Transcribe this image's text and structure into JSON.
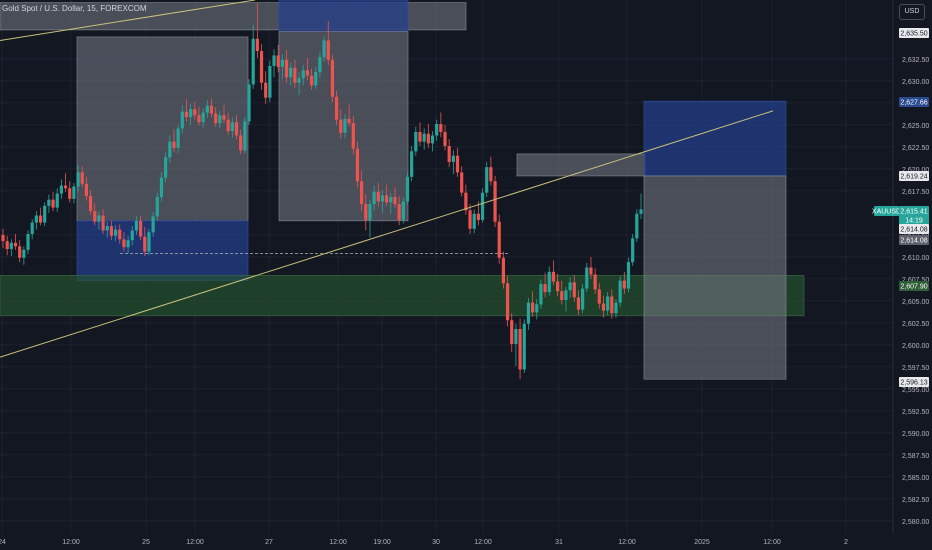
{
  "header": {
    "title": "Gold Spot / U.S. Dollar, 15, FOREXCOM",
    "currency": "USD"
  },
  "colors": {
    "background": "#131722",
    "up": "#26a69a",
    "down": "#ef5350",
    "grid": "#1e222d",
    "axis_text": "#b2b5be",
    "trendline": "#c9c07a",
    "blue_zone": "#1e3a7a",
    "green_zone": "#1f4028",
    "grey_zone": "#6b6e78"
  },
  "chart_data": {
    "type": "candlestick",
    "symbol": "XAUUSD",
    "ylim": [
      2578.5,
      2639.2
    ],
    "y_ticks": [
      "2,632.50",
      "2,630.00",
      "2,627.50",
      "2,625.00",
      "2,622.50",
      "2,620.00",
      "2,617.50",
      "2,612.50",
      "2,610.00",
      "2,607.50",
      "2,605.00",
      "2,602.50",
      "2,600.00",
      "2,597.50",
      "2,595.00",
      "2,592.50",
      "2,590.00",
      "2,587.50",
      "2,585.00",
      "2,582.50",
      "2,580.00"
    ],
    "x_ticks": [
      "24",
      "12:00",
      "25",
      "12:00",
      "27",
      "12:00",
      "19:00",
      "30",
      "12:00",
      "31",
      "12:00",
      "2025",
      "12:00",
      "2"
    ],
    "price_labels": [
      {
        "text": "2,635.50",
        "style": "plain"
      },
      {
        "text": "2,627.66",
        "style": "blue"
      },
      {
        "text": "2,619.24",
        "style": "plain"
      },
      {
        "text": "XAUUSD",
        "style": "symbol"
      },
      {
        "text": "2,615.41",
        "style": "teal"
      },
      {
        "text": "14:19",
        "style": "teal"
      },
      {
        "text": "2,614.08",
        "style": "plain"
      },
      {
        "text": "2,614.08",
        "style": "grey"
      },
      {
        "text": "2,607.90",
        "style": "green"
      },
      {
        "text": "2,596.13",
        "style": "plain"
      }
    ],
    "candles_ohlc": [
      [
        2612.5,
        2613.2,
        2611.0,
        2611.8
      ],
      [
        2611.8,
        2612.4,
        2610.2,
        2610.9
      ],
      [
        2610.9,
        2612.0,
        2610.1,
        2611.6
      ],
      [
        2611.6,
        2612.6,
        2610.8,
        2611.2
      ],
      [
        2611.2,
        2611.9,
        2609.4,
        2609.9
      ],
      [
        2609.9,
        2611.2,
        2609.1,
        2610.8
      ],
      [
        2610.8,
        2613.0,
        2610.3,
        2612.6
      ],
      [
        2612.6,
        2614.3,
        2612.0,
        2613.9
      ],
      [
        2613.9,
        2615.2,
        2613.1,
        2614.7
      ],
      [
        2614.7,
        2615.6,
        2613.6,
        2613.9
      ],
      [
        2613.9,
        2616.2,
        2613.5,
        2615.8
      ],
      [
        2615.8,
        2617.1,
        2615.0,
        2616.5
      ],
      [
        2616.5,
        2617.4,
        2615.2,
        2615.6
      ],
      [
        2615.6,
        2617.8,
        2615.1,
        2617.2
      ],
      [
        2617.2,
        2618.8,
        2616.6,
        2618.1
      ],
      [
        2618.1,
        2619.5,
        2617.4,
        2617.8
      ],
      [
        2617.8,
        2618.6,
        2616.2,
        2616.6
      ],
      [
        2616.6,
        2618.4,
        2616.1,
        2618.0
      ],
      [
        2618.0,
        2620.4,
        2617.5,
        2619.6
      ],
      [
        2619.6,
        2620.3,
        2617.9,
        2618.3
      ],
      [
        2618.3,
        2619.1,
        2616.4,
        2616.9
      ],
      [
        2616.9,
        2617.6,
        2614.8,
        2615.2
      ],
      [
        2615.2,
        2616.1,
        2613.6,
        2614.0
      ],
      [
        2614.0,
        2615.2,
        2613.1,
        2614.7
      ],
      [
        2614.7,
        2615.4,
        2612.6,
        2613.0
      ],
      [
        2613.0,
        2614.0,
        2612.2,
        2613.5
      ],
      [
        2613.5,
        2614.1,
        2611.9,
        2612.4
      ],
      [
        2612.4,
        2613.6,
        2611.8,
        2613.1
      ],
      [
        2613.1,
        2613.7,
        2611.5,
        2612.0
      ],
      [
        2612.0,
        2612.8,
        2610.6,
        2611.1
      ],
      [
        2611.1,
        2612.4,
        2610.4,
        2611.9
      ],
      [
        2611.9,
        2613.5,
        2611.3,
        2613.0
      ],
      [
        2613.0,
        2614.6,
        2612.5,
        2614.1
      ],
      [
        2614.1,
        2614.7,
        2611.9,
        2612.3
      ],
      [
        2612.3,
        2613.4,
        2610.1,
        2610.6
      ],
      [
        2610.6,
        2613.2,
        2610.2,
        2612.8
      ],
      [
        2612.8,
        2615.1,
        2612.3,
        2614.6
      ],
      [
        2614.6,
        2617.3,
        2614.1,
        2616.8
      ],
      [
        2616.8,
        2619.6,
        2616.3,
        2619.0
      ],
      [
        2619.0,
        2621.9,
        2618.5,
        2621.3
      ],
      [
        2621.3,
        2623.8,
        2620.7,
        2623.1
      ],
      [
        2623.1,
        2624.5,
        2621.9,
        2622.4
      ],
      [
        2622.4,
        2625.0,
        2621.8,
        2624.6
      ],
      [
        2624.6,
        2627.2,
        2624.0,
        2626.5
      ],
      [
        2626.5,
        2627.9,
        2625.4,
        2625.9
      ],
      [
        2625.9,
        2627.4,
        2625.0,
        2626.8
      ],
      [
        2626.8,
        2627.6,
        2625.6,
        2626.1
      ],
      [
        2626.1,
        2627.1,
        2624.9,
        2625.3
      ],
      [
        2625.3,
        2626.9,
        2624.7,
        2626.4
      ],
      [
        2626.4,
        2627.8,
        2625.8,
        2627.2
      ],
      [
        2627.2,
        2628.0,
        2625.9,
        2626.3
      ],
      [
        2626.3,
        2627.0,
        2624.8,
        2625.2
      ],
      [
        2625.2,
        2626.6,
        2624.6,
        2626.1
      ],
      [
        2626.1,
        2627.3,
        2625.2,
        2625.6
      ],
      [
        2625.6,
        2626.4,
        2623.9,
        2624.3
      ],
      [
        2624.3,
        2625.8,
        2623.6,
        2625.3
      ],
      [
        2625.3,
        2626.1,
        2623.4,
        2623.8
      ],
      [
        2623.8,
        2624.5,
        2621.7,
        2622.1
      ],
      [
        2622.1,
        2625.9,
        2621.8,
        2625.4
      ],
      [
        2625.4,
        2630.2,
        2625.0,
        2629.6
      ],
      [
        2629.6,
        2636.4,
        2629.1,
        2634.8
      ],
      [
        2634.8,
        2638.9,
        2632.6,
        2633.4
      ],
      [
        2633.4,
        2634.2,
        2629.0,
        2629.8
      ],
      [
        2629.8,
        2631.1,
        2627.4,
        2628.1
      ],
      [
        2628.1,
        2632.3,
        2627.6,
        2631.7
      ],
      [
        2631.7,
        2633.6,
        2630.4,
        2632.9
      ],
      [
        2632.9,
        2634.1,
        2631.0,
        2631.6
      ],
      [
        2631.6,
        2633.0,
        2630.2,
        2632.4
      ],
      [
        2632.4,
        2633.5,
        2629.8,
        2630.4
      ],
      [
        2630.4,
        2632.1,
        2629.5,
        2631.5
      ],
      [
        2631.5,
        2632.4,
        2629.2,
        2629.8
      ],
      [
        2629.8,
        2631.0,
        2628.4,
        2630.3
      ],
      [
        2630.3,
        2631.8,
        2629.5,
        2631.2
      ],
      [
        2631.2,
        2632.6,
        2630.1,
        2630.6
      ],
      [
        2630.6,
        2631.4,
        2629.0,
        2629.5
      ],
      [
        2629.5,
        2631.6,
        2629.1,
        2631.0
      ],
      [
        2631.0,
        2633.2,
        2630.4,
        2632.7
      ],
      [
        2632.7,
        2635.1,
        2632.2,
        2634.6
      ],
      [
        2634.6,
        2636.8,
        2631.8,
        2632.4
      ],
      [
        2632.4,
        2633.0,
        2627.6,
        2628.2
      ],
      [
        2628.2,
        2628.9,
        2625.0,
        2625.6
      ],
      [
        2625.6,
        2626.8,
        2623.4,
        2624.1
      ],
      [
        2624.1,
        2626.2,
        2623.5,
        2625.7
      ],
      [
        2625.7,
        2627.3,
        2624.8,
        2625.2
      ],
      [
        2625.2,
        2626.0,
        2621.6,
        2622.3
      ],
      [
        2622.3,
        2623.1,
        2617.9,
        2618.6
      ],
      [
        2618.6,
        2619.8,
        2615.2,
        2616.0
      ],
      [
        2616.0,
        2617.2,
        2613.0,
        2614.2
      ],
      [
        2614.2,
        2616.5,
        2612.2,
        2616.0
      ],
      [
        2616.0,
        2618.1,
        2615.3,
        2617.4
      ],
      [
        2617.4,
        2618.4,
        2615.7,
        2616.3
      ],
      [
        2616.3,
        2617.6,
        2615.0,
        2617.0
      ],
      [
        2617.0,
        2618.2,
        2615.8,
        2616.2
      ],
      [
        2616.2,
        2617.3,
        2614.9,
        2616.8
      ],
      [
        2616.8,
        2617.9,
        2615.6,
        2616.0
      ],
      [
        2616.0,
        2616.9,
        2613.6,
        2614.2
      ],
      [
        2614.2,
        2616.8,
        2613.8,
        2616.3
      ],
      [
        2616.3,
        2619.6,
        2615.9,
        2619.1
      ],
      [
        2619.1,
        2622.6,
        2618.6,
        2622.0
      ],
      [
        2622.0,
        2624.8,
        2621.5,
        2624.2
      ],
      [
        2624.2,
        2625.3,
        2622.6,
        2623.1
      ],
      [
        2623.1,
        2624.6,
        2622.2,
        2624.0
      ],
      [
        2624.0,
        2625.1,
        2622.4,
        2622.9
      ],
      [
        2622.9,
        2624.3,
        2622.0,
        2623.8
      ],
      [
        2623.8,
        2625.6,
        2623.2,
        2625.1
      ],
      [
        2625.1,
        2626.4,
        2623.6,
        2624.2
      ],
      [
        2624.2,
        2625.0,
        2622.1,
        2622.6
      ],
      [
        2622.6,
        2623.4,
        2620.2,
        2620.8
      ],
      [
        2620.8,
        2622.1,
        2619.4,
        2621.5
      ],
      [
        2621.5,
        2622.4,
        2619.1,
        2619.6
      ],
      [
        2619.6,
        2620.3,
        2616.9,
        2617.3
      ],
      [
        2617.3,
        2618.2,
        2614.8,
        2615.3
      ],
      [
        2615.3,
        2616.0,
        2612.6,
        2613.2
      ],
      [
        2613.2,
        2615.4,
        2612.7,
        2614.9
      ],
      [
        2614.9,
        2616.3,
        2613.6,
        2614.2
      ],
      [
        2614.2,
        2617.8,
        2613.9,
        2617.3
      ],
      [
        2617.3,
        2620.8,
        2616.8,
        2620.2
      ],
      [
        2620.2,
        2621.4,
        2618.1,
        2618.6
      ],
      [
        2618.6,
        2619.2,
        2613.4,
        2614.0
      ],
      [
        2614.0,
        2614.8,
        2609.2,
        2609.9
      ],
      [
        2609.9,
        2610.6,
        2606.4,
        2607.0
      ],
      [
        2607.0,
        2607.8,
        2602.1,
        2602.8
      ],
      [
        2602.8,
        2603.6,
        2599.2,
        2600.1
      ],
      [
        2600.1,
        2602.4,
        2597.6,
        2601.8
      ],
      [
        2601.8,
        2603.0,
        2596.1,
        2597.2
      ],
      [
        2597.2,
        2602.9,
        2596.8,
        2602.4
      ],
      [
        2602.4,
        2605.3,
        2601.7,
        2604.8
      ],
      [
        2604.8,
        2606.1,
        2603.2,
        2603.7
      ],
      [
        2603.7,
        2605.2,
        2602.9,
        2604.6
      ],
      [
        2604.6,
        2607.4,
        2604.1,
        2606.9
      ],
      [
        2606.9,
        2608.2,
        2605.4,
        2606.0
      ],
      [
        2606.0,
        2608.9,
        2605.6,
        2608.3
      ],
      [
        2608.3,
        2609.6,
        2606.8,
        2607.2
      ],
      [
        2607.2,
        2608.1,
        2605.5,
        2606.1
      ],
      [
        2606.1,
        2607.3,
        2604.6,
        2605.1
      ],
      [
        2605.1,
        2606.6,
        2603.8,
        2606.2
      ],
      [
        2606.2,
        2607.7,
        2605.3,
        2607.1
      ],
      [
        2607.1,
        2607.9,
        2604.9,
        2605.4
      ],
      [
        2605.4,
        2606.2,
        2603.4,
        2604.0
      ],
      [
        2604.0,
        2606.9,
        2603.6,
        2606.4
      ],
      [
        2606.4,
        2609.3,
        2606.0,
        2608.8
      ],
      [
        2608.8,
        2610.0,
        2607.5,
        2608.0
      ],
      [
        2608.0,
        2608.7,
        2605.8,
        2606.3
      ],
      [
        2606.3,
        2607.0,
        2604.1,
        2604.7
      ],
      [
        2604.7,
        2605.6,
        2603.1,
        2603.9
      ],
      [
        2603.9,
        2606.0,
        2603.4,
        2605.5
      ],
      [
        2605.5,
        2606.3,
        2603.0,
        2603.6
      ],
      [
        2603.6,
        2605.2,
        2603.1,
        2604.8
      ],
      [
        2604.8,
        2607.8,
        2604.3,
        2607.3
      ],
      [
        2607.3,
        2608.3,
        2605.8,
        2606.4
      ],
      [
        2606.4,
        2609.9,
        2606.0,
        2609.4
      ],
      [
        2609.4,
        2612.6,
        2609.0,
        2612.1
      ],
      [
        2612.1,
        2615.4,
        2611.7,
        2614.9
      ],
      [
        2614.9,
        2617.2,
        2614.3,
        2615.4
      ]
    ],
    "zones": [
      {
        "name": "top-left-grey",
        "color": "grey",
        "y": [
          2635.8,
          2638.9
        ]
      },
      {
        "name": "grey-box-1",
        "color": "grey",
        "y": [
          2614.1,
          2635.0
        ]
      },
      {
        "name": "blue-box-1",
        "color": "blue",
        "y": [
          2607.3,
          2614.1
        ]
      },
      {
        "name": "blue-top-2",
        "color": "blue",
        "y": [
          2635.6,
          2639.2
        ]
      },
      {
        "name": "grey-box-2",
        "color": "grey",
        "y": [
          2614.1,
          2635.6
        ]
      },
      {
        "name": "grey-box-3",
        "color": "grey",
        "y": [
          2619.2,
          2621.7
        ]
      },
      {
        "name": "green-zone",
        "color": "green",
        "y": [
          2603.3,
          2607.9
        ]
      },
      {
        "name": "blue-target",
        "color": "blue",
        "y": [
          2619.2,
          2627.7
        ]
      },
      {
        "name": "grey-target",
        "color": "grey",
        "y": [
          2596.1,
          2619.2
        ]
      }
    ],
    "trendlines": [
      {
        "from": [
          2634.6
        ],
        "to": [
          2639.2
        ]
      },
      {
        "from": [
          2598.6
        ],
        "to": [
          2626.6
        ]
      }
    ]
  }
}
